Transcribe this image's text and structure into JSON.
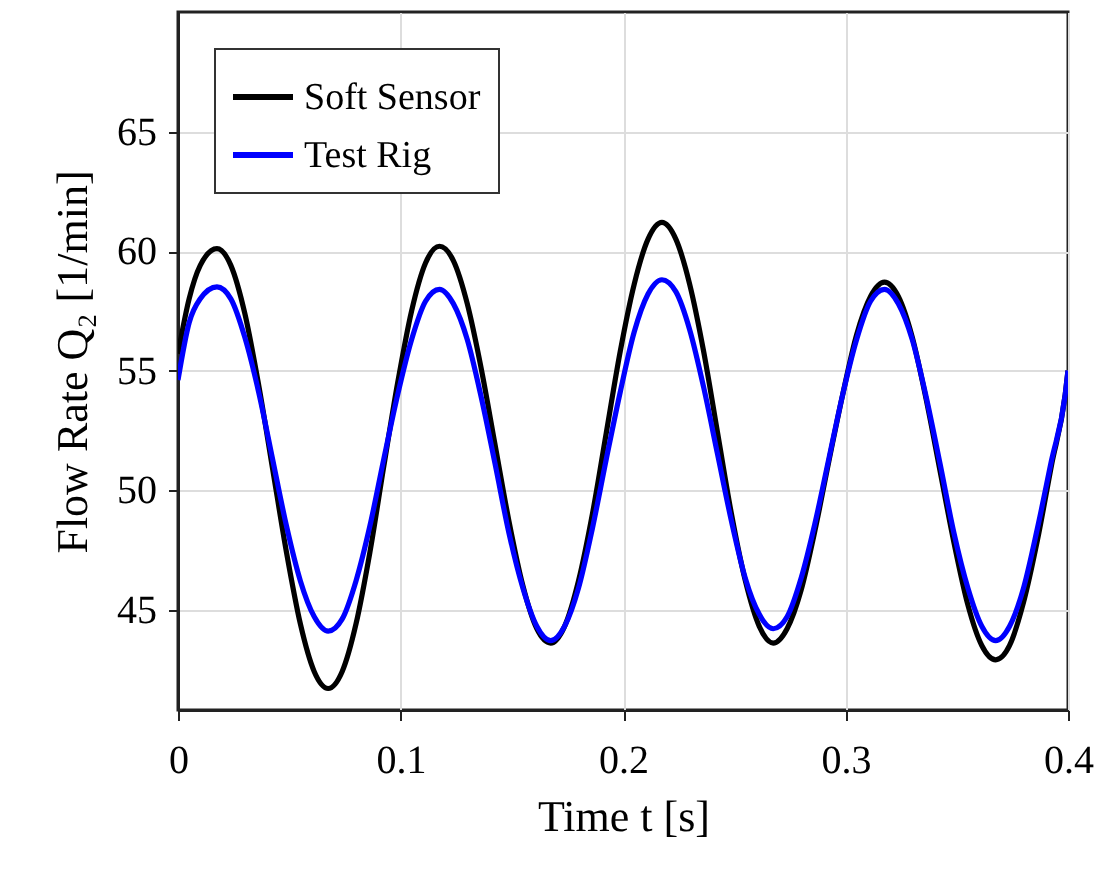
{
  "chart_data": {
    "type": "line",
    "xlabel": "Time t [s]",
    "ylabel": "Flow Rate Q₂ [1/min]",
    "x": [
      0,
      0.005,
      0.01,
      0.0175,
      0.02375,
      0.03,
      0.03625,
      0.0425,
      0.04875,
      0.055,
      0.06125,
      0.0675,
      0.07375,
      0.08,
      0.08625,
      0.0925,
      0.09875,
      0.105,
      0.11125,
      0.1175,
      0.12375,
      0.13,
      0.13625,
      0.1425,
      0.14875,
      0.155,
      0.16125,
      0.1675,
      0.17375,
      0.18,
      0.18625,
      0.1925,
      0.19875,
      0.205,
      0.21125,
      0.2175,
      0.22375,
      0.23,
      0.23625,
      0.2425,
      0.24875,
      0.255,
      0.26125,
      0.2675,
      0.27375,
      0.28,
      0.28625,
      0.2925,
      0.29875,
      0.305,
      0.31125,
      0.3175,
      0.32375,
      0.33,
      0.33625,
      0.3425,
      0.34875,
      0.355,
      0.36125,
      0.3675,
      0.37375,
      0.38,
      0.38625,
      0.3925,
      0.39875,
      0.4
    ],
    "series": [
      {
        "name": "Soft Sensor",
        "color": "#000000",
        "values": [
          55.7,
          58.0,
          59.4,
          60.1,
          59.4,
          57.4,
          54.4,
          50.9,
          47.4,
          44.4,
          42.4,
          41.7,
          42.4,
          44.4,
          47.4,
          51.0,
          54.5,
          57.5,
          59.5,
          60.2,
          59.6,
          57.8,
          55.1,
          51.9,
          48.7,
          46.0,
          44.2,
          43.6,
          44.3,
          46.2,
          49.0,
          52.4,
          55.8,
          58.6,
          60.5,
          61.2,
          60.5,
          58.6,
          55.8,
          52.4,
          49.0,
          46.2,
          44.3,
          43.6,
          44.2,
          45.8,
          48.3,
          51.2,
          54.0,
          56.5,
          58.1,
          58.7,
          58.1,
          56.4,
          53.8,
          50.8,
          47.8,
          45.2,
          43.5,
          42.9,
          43.5,
          45.3,
          47.9,
          51.0,
          54.0,
          55.0
        ]
      },
      {
        "name": "Test Rig",
        "color": "#0000ff",
        "values": [
          54.6,
          57.0,
          58.0,
          58.5,
          58.0,
          56.4,
          54.1,
          51.3,
          48.5,
          46.2,
          44.7,
          44.1,
          44.6,
          46.2,
          48.5,
          51.3,
          54.0,
          56.3,
          57.9,
          58.4,
          57.8,
          56.3,
          53.9,
          51.1,
          48.2,
          45.9,
          44.3,
          43.7,
          44.3,
          45.9,
          48.4,
          51.3,
          54.1,
          56.6,
          58.2,
          58.8,
          58.3,
          56.7,
          54.3,
          51.5,
          48.7,
          46.3,
          44.8,
          44.2,
          44.7,
          46.3,
          48.6,
          51.3,
          54.0,
          56.3,
          57.9,
          58.4,
          57.8,
          56.3,
          53.9,
          51.1,
          48.2,
          45.9,
          44.3,
          43.7,
          44.3,
          45.9,
          48.4,
          51.2,
          54.0,
          55.0
        ]
      }
    ],
    "xlim": [
      0,
      0.4
    ],
    "xticks": [
      0,
      0.1,
      0.2,
      0.3,
      0.4
    ],
    "ylim": [
      40.8,
      70
    ],
    "yticks": [
      45,
      50,
      55,
      60,
      65
    ],
    "grid": true,
    "legend": "top left"
  }
}
